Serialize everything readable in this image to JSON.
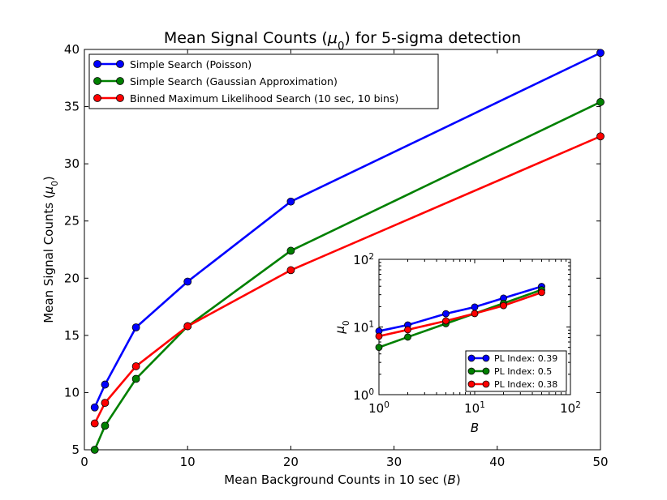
{
  "chart_data": [
    {
      "type": "line",
      "title": "Mean Signal Counts ($\\mu_0$) for 5-sigma detection",
      "xlabel": "Mean Background Counts in 10 sec ($B$)",
      "ylabel": "Mean Signal Counts ($\\mu_0$)",
      "xlim": [
        0,
        50
      ],
      "ylim": [
        5,
        40
      ],
      "xticks": [
        0,
        10,
        20,
        30,
        40,
        50
      ],
      "yticks": [
        5,
        10,
        15,
        20,
        25,
        30,
        35,
        40
      ],
      "legend_position": "top-left",
      "x": [
        1,
        2,
        5,
        10,
        20,
        50
      ],
      "series": [
        {
          "name": "Simple Search (Poisson)",
          "color": "#0000ff",
          "values": [
            8.7,
            10.7,
            15.7,
            19.7,
            26.7,
            39.7
          ]
        },
        {
          "name": "Simple Search (Gaussian Approximation)",
          "color": "#008000",
          "values": [
            5.0,
            7.1,
            11.2,
            15.8,
            22.4,
            35.4
          ]
        },
        {
          "name": "Binned Maximum Likelihood Search (10 sec, 10 bins)",
          "color": "#ff0000",
          "values": [
            7.3,
            9.1,
            12.3,
            15.8,
            20.7,
            32.4
          ]
        }
      ]
    },
    {
      "type": "line",
      "scale": "log-log",
      "xlabel": "$B$",
      "ylabel": "$\\mu_0$",
      "xlim": [
        1,
        100
      ],
      "ylim": [
        1,
        100
      ],
      "xtick_labels": [
        "10^0",
        "10^1",
        "10^2"
      ],
      "ytick_labels": [
        "10^0",
        "10^1",
        "10^2"
      ],
      "legend_position": "bottom-right",
      "x": [
        1,
        2,
        5,
        10,
        20,
        50
      ],
      "series": [
        {
          "name": "PL Index: 0.39",
          "color": "#0000ff",
          "values": [
            8.7,
            10.7,
            15.7,
            19.7,
            26.7,
            39.7
          ]
        },
        {
          "name": "PL Index: 0.5",
          "color": "#008000",
          "values": [
            5.0,
            7.1,
            11.2,
            15.8,
            22.4,
            35.4
          ]
        },
        {
          "name": "PL Index: 0.38",
          "color": "#ff0000",
          "values": [
            7.3,
            9.1,
            12.3,
            15.8,
            20.7,
            32.4
          ]
        }
      ]
    }
  ]
}
